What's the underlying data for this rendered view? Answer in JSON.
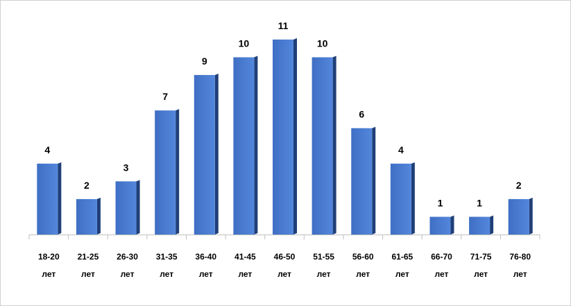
{
  "chart_data": {
    "type": "bar",
    "categories": [
      "18-20 лет",
      "21-25 лет",
      "26-30 лет",
      "31-35 лет",
      "36-40 лет",
      "41-45 лет",
      "46-50 лет",
      "51-55 лет",
      "56-60 лет",
      "61-65 лет",
      "66-70 лет",
      "71-75 лет",
      "76-80 лет"
    ],
    "values": [
      4,
      2,
      3,
      7,
      9,
      10,
      11,
      10,
      6,
      4,
      1,
      1,
      2
    ],
    "color": "#4a7fd6"
  }
}
